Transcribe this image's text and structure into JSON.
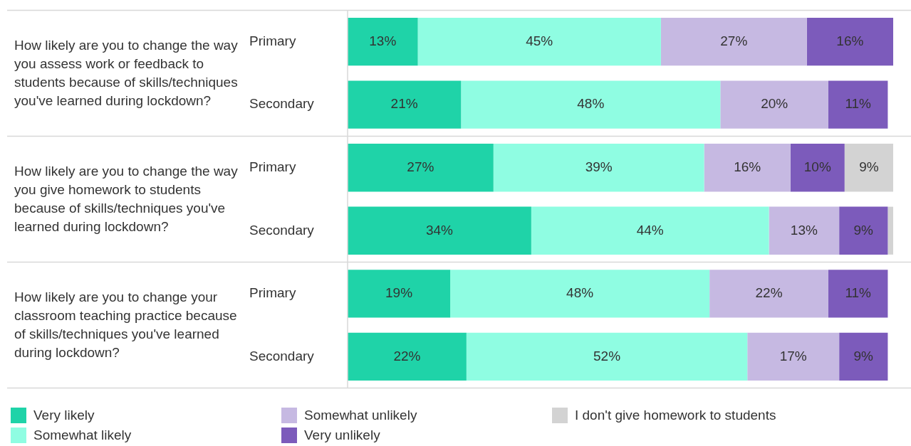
{
  "chart_data": {
    "type": "bar",
    "orientation": "horizontal",
    "stacked": true,
    "legend": "bottom",
    "categories": [
      "Primary",
      "Secondary",
      "Primary",
      "Secondary",
      "Primary",
      "Secondary"
    ],
    "xlim": [
      0,
      101
    ],
    "tick_labels": "y",
    "series": [
      {
        "name": "Very likely",
        "color": "#1fd3a8",
        "values": [
          13,
          21,
          27,
          34,
          19,
          22
        ],
        "value_labels": [
          "13%",
          "21%",
          "27%",
          "34%",
          "19%",
          "22%"
        ]
      },
      {
        "name": "Somewhat likely",
        "color": "#8ffde2",
        "values": [
          45,
          48,
          39,
          44,
          48,
          52
        ],
        "value_labels": [
          "45%",
          "48%",
          "39%",
          "44%",
          "48%",
          "52%"
        ]
      },
      {
        "name": "Somewhat unlikely",
        "color": "#c6b9e2",
        "values": [
          27,
          20,
          16,
          13,
          22,
          17
        ],
        "value_labels": [
          "27%",
          "20%",
          "16%",
          "13%",
          "22%",
          "17%"
        ]
      },
      {
        "name": "Very unlikely",
        "color": "#7c5bbb",
        "values": [
          16,
          11,
          10,
          9,
          11,
          9
        ],
        "value_labels": [
          "16%",
          "11%",
          "10%",
          "9%",
          "11%",
          "9%"
        ]
      },
      {
        "name": "I don't give homework to students",
        "color": "#d3d3d3",
        "values": [
          null,
          null,
          9,
          1,
          null,
          null
        ],
        "value_labels": [
          null,
          null,
          "9%",
          null,
          null,
          null
        ]
      }
    ],
    "annotations": [
      "How likely are you to change the way you assess work or feedback to students because of skills/techniques you've learned during lockdown?",
      "How likely are you to change the way you give homework to students because of skills/techniques you've learned during lockdown?",
      "How likely are you to change your classroom teaching practice because of skills/techniques you've learned during lockdown?"
    ]
  }
}
